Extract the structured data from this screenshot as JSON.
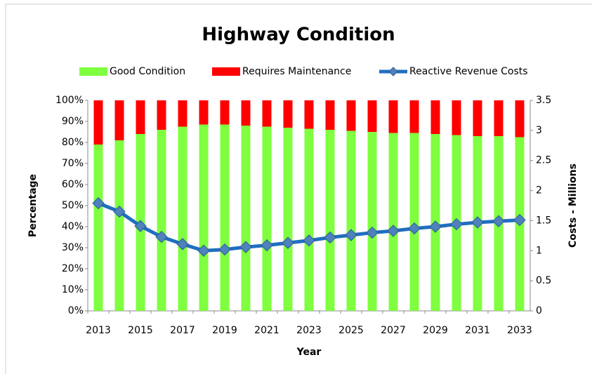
{
  "chart_data": {
    "type": "bar",
    "stacked": true,
    "title": "Highway Condition",
    "xlabel": "Year",
    "ylabel": "Percentage",
    "y2label": "Costs - Millions",
    "categories": [
      "2013",
      null,
      "2015",
      null,
      "2017",
      null,
      "2019",
      null,
      "2021",
      null,
      "2023",
      null,
      "2025",
      null,
      "2027",
      null,
      "2029",
      null,
      "2031",
      null,
      "2033"
    ],
    "series": [
      {
        "name": "Good Condition",
        "type": "bar",
        "color": "#7fff3f",
        "values": [
          79,
          81,
          84,
          86,
          87.5,
          88.5,
          88.5,
          88,
          87.5,
          87,
          86.5,
          86,
          85.5,
          85,
          84.5,
          84.5,
          84,
          83.5,
          83,
          83,
          82.5
        ]
      },
      {
        "name": "Requires Maintenance",
        "type": "bar",
        "color": "#ff0000",
        "values": [
          21,
          19,
          16,
          14,
          12.5,
          11.5,
          11.5,
          12,
          12.5,
          13,
          13.5,
          14,
          14.5,
          15,
          15.5,
          15.5,
          16,
          16.5,
          17,
          17,
          17.5
        ]
      },
      {
        "name": "Reactive Revenue Costs",
        "type": "line",
        "axis": "y2",
        "color": "#1f6fc0",
        "marker_color": "#4f81bd",
        "values": [
          1.79,
          1.65,
          1.41,
          1.23,
          1.11,
          1.0,
          1.02,
          1.06,
          1.09,
          1.13,
          1.17,
          1.22,
          1.26,
          1.3,
          1.33,
          1.37,
          1.4,
          1.44,
          1.47,
          1.49,
          1.51
        ]
      }
    ],
    "ylim": [
      0,
      100
    ],
    "yticks": [
      {
        "value": 0,
        "label": "0%"
      },
      {
        "value": 10,
        "label": "10%"
      },
      {
        "value": 20,
        "label": "20%"
      },
      {
        "value": 30,
        "label": "30%"
      },
      {
        "value": 40,
        "label": "40%"
      },
      {
        "value": 50,
        "label": "50%"
      },
      {
        "value": 60,
        "label": "60%"
      },
      {
        "value": 70,
        "label": "70%"
      },
      {
        "value": 80,
        "label": "80%"
      },
      {
        "value": 90,
        "label": "90%"
      },
      {
        "value": 100,
        "label": "100%"
      }
    ],
    "y2lim": [
      0,
      3.5
    ],
    "y2ticks": [
      0,
      0.5,
      1,
      1.5,
      2,
      2.5,
      3,
      3.5
    ],
    "grid": false,
    "legend": "top"
  }
}
